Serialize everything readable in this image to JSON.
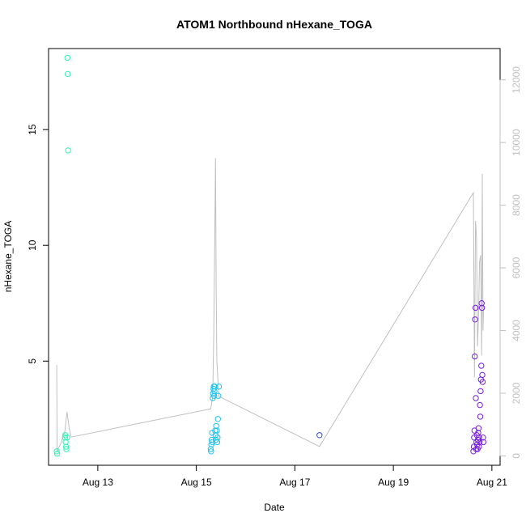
{
  "chart_data": {
    "type": "scatter",
    "title": "ATOM1 Northbound nHexane_TOGA",
    "xlabel": "Date",
    "ylabel": "nHexane_TOGA",
    "xlim": [
      "2016-08-12 00:00",
      "2016-08-21 04:00"
    ],
    "ylim": [
      0.5,
      18.5
    ],
    "y_ticks": [
      5,
      10,
      15
    ],
    "x_ticks": [
      {
        "label": "Aug 13",
        "value": "2016-08-13 00:00"
      },
      {
        "label": "Aug 15",
        "value": "2016-08-15 00:00"
      },
      {
        "label": "Aug 17",
        "value": "2016-08-17 00:00"
      },
      {
        "label": "Aug 19",
        "value": "2016-08-19 00:00"
      },
      {
        "label": "Aug 21",
        "value": "2016-08-21 00:00"
      }
    ],
    "secondary_axis": {
      "side": "right",
      "ylim": [
        -300,
        13000
      ],
      "ticks": [
        0,
        2000,
        4000,
        6000,
        8000,
        10000,
        12000
      ],
      "color": "#c0c0c0"
    },
    "grid": false,
    "legend": "none",
    "series": [
      {
        "color": "#2EF5B4",
        "points": [
          {
            "x": "2016-08-12 04:00",
            "y": 1.1
          },
          {
            "x": "2016-08-12 04:10",
            "y": 1.0
          },
          {
            "x": "2016-08-12 08:00",
            "y": 1.7
          },
          {
            "x": "2016-08-12 08:10",
            "y": 1.8
          },
          {
            "x": "2016-08-12 08:20",
            "y": 1.5
          },
          {
            "x": "2016-08-12 08:30",
            "y": 1.3
          },
          {
            "x": "2016-08-12 08:40",
            "y": 1.2
          },
          {
            "x": "2016-08-12 09:00",
            "y": 1.7
          },
          {
            "x": "2016-08-12 09:10",
            "y": 18.1
          },
          {
            "x": "2016-08-12 09:20",
            "y": 17.4
          },
          {
            "x": "2016-08-12 09:30",
            "y": 14.1
          }
        ]
      },
      {
        "color": "#20C3F0",
        "points": [
          {
            "x": "2016-08-15 07:00",
            "y": 1.2
          },
          {
            "x": "2016-08-15 07:10",
            "y": 1.1
          },
          {
            "x": "2016-08-15 07:20",
            "y": 1.4
          },
          {
            "x": "2016-08-15 07:30",
            "y": 1.6
          },
          {
            "x": "2016-08-15 07:40",
            "y": 1.9
          },
          {
            "x": "2016-08-15 07:50",
            "y": 1.5
          },
          {
            "x": "2016-08-15 08:00",
            "y": 3.4
          },
          {
            "x": "2016-08-15 08:10",
            "y": 3.6
          },
          {
            "x": "2016-08-15 08:20",
            "y": 3.8
          },
          {
            "x": "2016-08-15 08:30",
            "y": 3.9
          },
          {
            "x": "2016-08-15 08:40",
            "y": 3.5
          },
          {
            "x": "2016-08-15 08:50",
            "y": 3.7
          },
          {
            "x": "2016-08-15 09:00",
            "y": 3.9
          },
          {
            "x": "2016-08-15 09:10",
            "y": 2.0
          },
          {
            "x": "2016-08-15 09:20",
            "y": 1.8
          },
          {
            "x": "2016-08-15 09:30",
            "y": 1.6
          },
          {
            "x": "2016-08-15 09:40",
            "y": 2.2
          },
          {
            "x": "2016-08-15 10:00",
            "y": 2.0
          },
          {
            "x": "2016-08-15 10:10",
            "y": 1.5
          },
          {
            "x": "2016-08-15 10:20",
            "y": 1.7
          },
          {
            "x": "2016-08-15 10:30",
            "y": 2.5
          },
          {
            "x": "2016-08-15 10:40",
            "y": 3.5
          },
          {
            "x": "2016-08-15 11:00",
            "y": 3.9
          }
        ]
      },
      {
        "color": "#2A4BE8",
        "points": [
          {
            "x": "2016-08-17 12:00",
            "y": 1.8
          }
        ]
      },
      {
        "color": "#7A1FE0",
        "points": [
          {
            "x": "2016-08-20 15:00",
            "y": 1.1
          },
          {
            "x": "2016-08-20 15:10",
            "y": 1.3
          },
          {
            "x": "2016-08-20 15:20",
            "y": 1.7
          },
          {
            "x": "2016-08-20 15:30",
            "y": 2.0
          },
          {
            "x": "2016-08-20 15:40",
            "y": 5.2
          },
          {
            "x": "2016-08-20 15:50",
            "y": 6.8
          },
          {
            "x": "2016-08-20 16:00",
            "y": 7.3
          },
          {
            "x": "2016-08-20 16:10",
            "y": 3.4
          },
          {
            "x": "2016-08-20 16:20",
            "y": 1.2
          },
          {
            "x": "2016-08-20 16:30",
            "y": 1.5
          },
          {
            "x": "2016-08-20 16:40",
            "y": 1.8
          },
          {
            "x": "2016-08-20 16:50",
            "y": 1.4
          },
          {
            "x": "2016-08-20 17:00",
            "y": 1.2
          },
          {
            "x": "2016-08-20 17:10",
            "y": 1.6
          },
          {
            "x": "2016-08-20 17:20",
            "y": 1.9
          },
          {
            "x": "2016-08-20 17:30",
            "y": 2.1
          },
          {
            "x": "2016-08-20 17:40",
            "y": 1.3
          },
          {
            "x": "2016-08-20 17:50",
            "y": 1.7
          },
          {
            "x": "2016-08-20 18:00",
            "y": 1.5
          },
          {
            "x": "2016-08-20 18:10",
            "y": 3.1
          },
          {
            "x": "2016-08-20 18:20",
            "y": 2.6
          },
          {
            "x": "2016-08-20 18:30",
            "y": 3.7
          },
          {
            "x": "2016-08-20 18:40",
            "y": 4.2
          },
          {
            "x": "2016-08-20 18:50",
            "y": 4.8
          },
          {
            "x": "2016-08-20 19:00",
            "y": 7.5
          },
          {
            "x": "2016-08-20 19:10",
            "y": 7.3
          },
          {
            "x": "2016-08-20 19:20",
            "y": 4.4
          },
          {
            "x": "2016-08-20 19:30",
            "y": 4.1
          },
          {
            "x": "2016-08-20 19:40",
            "y": 1.7
          },
          {
            "x": "2016-08-20 19:50",
            "y": 1.5
          }
        ]
      }
    ],
    "line_series": {
      "color": "#c0c0c0",
      "axis": "right",
      "points": [
        {
          "x": "2016-08-12 04:00",
          "y": 2900
        },
        {
          "x": "2016-08-12 04:10",
          "y": 100
        },
        {
          "x": "2016-08-12 04:30",
          "y": 200
        },
        {
          "x": "2016-08-12 06:00",
          "y": 400
        },
        {
          "x": "2016-08-12 08:00",
          "y": 800
        },
        {
          "x": "2016-08-12 09:00",
          "y": 1400
        },
        {
          "x": "2016-08-12 10:00",
          "y": 900
        },
        {
          "x": "2016-08-12 11:00",
          "y": 600
        },
        {
          "x": "2016-08-15 07:00",
          "y": 1500
        },
        {
          "x": "2016-08-15 08:00",
          "y": 1900
        },
        {
          "x": "2016-08-15 08:30",
          "y": 4000
        },
        {
          "x": "2016-08-15 09:00",
          "y": 7000
        },
        {
          "x": "2016-08-15 09:20",
          "y": 9500
        },
        {
          "x": "2016-08-15 09:40",
          "y": 5500
        },
        {
          "x": "2016-08-15 10:00",
          "y": 3000
        },
        {
          "x": "2016-08-15 11:00",
          "y": 1900
        },
        {
          "x": "2016-08-17 12:00",
          "y": 300
        },
        {
          "x": "2016-08-20 15:00",
          "y": 8400
        },
        {
          "x": "2016-08-20 15:30",
          "y": 2500
        },
        {
          "x": "2016-08-20 16:00",
          "y": 7500
        },
        {
          "x": "2016-08-20 16:30",
          "y": 7000
        },
        {
          "x": "2016-08-20 17:00",
          "y": 3500
        },
        {
          "x": "2016-08-20 17:30",
          "y": 4500
        },
        {
          "x": "2016-08-20 18:00",
          "y": 6200
        },
        {
          "x": "2016-08-20 18:30",
          "y": 6400
        },
        {
          "x": "2016-08-20 19:00",
          "y": 3200
        },
        {
          "x": "2016-08-20 19:20",
          "y": 9000
        },
        {
          "x": "2016-08-20 19:40",
          "y": 4000
        },
        {
          "x": "2016-08-20 20:00",
          "y": 4800
        }
      ]
    }
  }
}
